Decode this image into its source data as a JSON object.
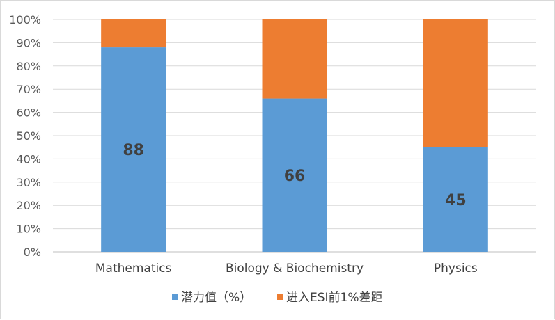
{
  "chart_data": {
    "type": "bar",
    "stacked": true,
    "percent_stacked": true,
    "categories": [
      "Mathematics",
      "Biology & Biochemistry",
      "Physics"
    ],
    "series": [
      {
        "name": "潜力值（%）",
        "values": [
          88,
          66,
          45
        ],
        "color": "#5b9bd5"
      },
      {
        "name": "进入ESI前1%差距",
        "values": [
          12,
          34,
          55
        ],
        "color": "#ed7d31"
      }
    ],
    "data_labels": [
      "88",
      "66",
      "45"
    ],
    "y_ticks": [
      "0%",
      "10%",
      "20%",
      "30%",
      "40%",
      "50%",
      "60%",
      "70%",
      "80%",
      "90%",
      "100%"
    ],
    "ylim": [
      0,
      100
    ],
    "grid": true,
    "legend_position": "bottom"
  }
}
